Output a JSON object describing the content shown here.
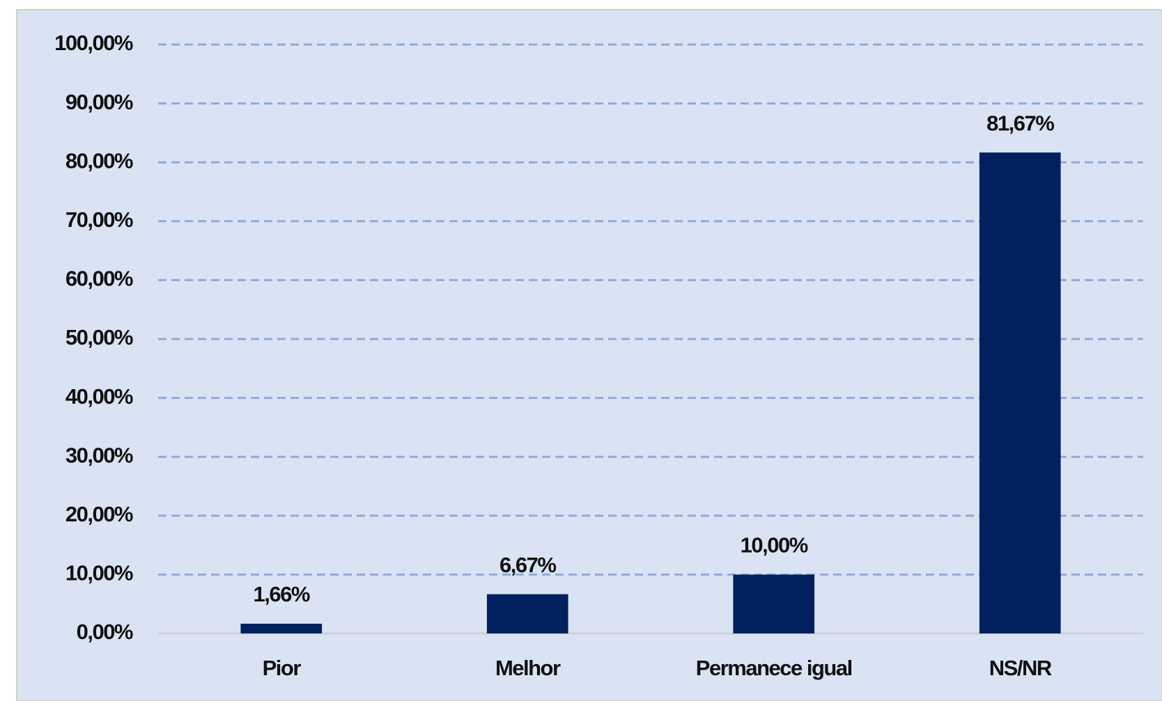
{
  "chart_data": {
    "type": "bar",
    "categories": [
      "Pior",
      "Melhor",
      "Permanece igual",
      "NS/NR"
    ],
    "values": [
      1.66,
      6.67,
      10,
      81.67
    ],
    "value_labels": [
      "1,66%",
      "6,67%",
      "10,00%",
      "81,67%"
    ],
    "color": "#002060",
    "ylim": [
      0,
      100
    ],
    "yticks": [
      {
        "value": 0,
        "label": "0,00%"
      },
      {
        "value": 10,
        "label": "10,00%"
      },
      {
        "value": 20,
        "label": "20,00%"
      },
      {
        "value": 30,
        "label": "30,00%"
      },
      {
        "value": 40,
        "label": "40,00%"
      },
      {
        "value": 50,
        "label": "50,00%"
      },
      {
        "value": 60,
        "label": "60,00%"
      },
      {
        "value": 70,
        "label": "70,00%"
      },
      {
        "value": 80,
        "label": "80,00%"
      },
      {
        "value": 90,
        "label": "90,00%"
      },
      {
        "value": 100,
        "label": "100,00%"
      }
    ],
    "grid": true
  }
}
